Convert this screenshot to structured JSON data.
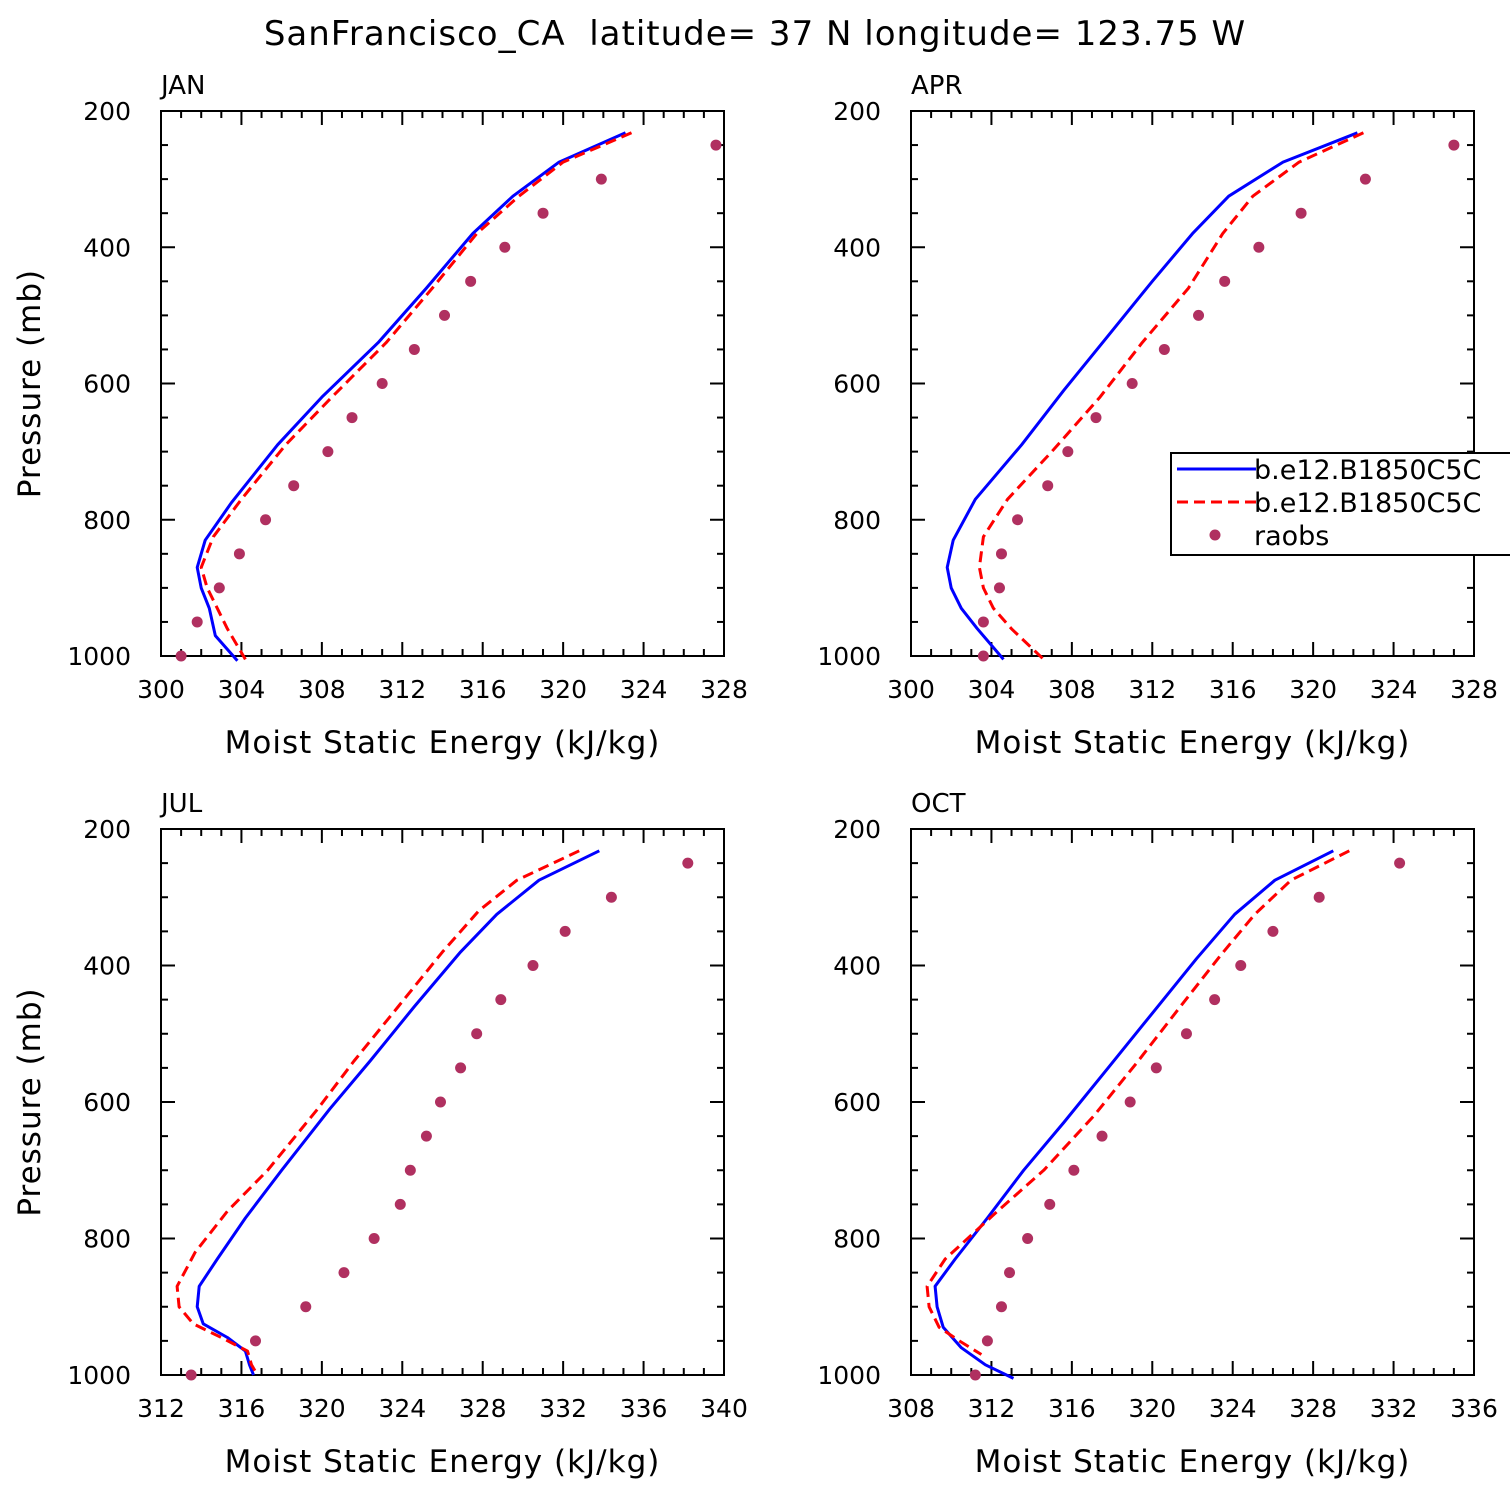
{
  "figure_title": "SanFrancisco_CA  latitude= 37 N longitude= 123.75 W",
  "legend": {
    "entries": [
      {
        "label": "b.e12.B1850C5C",
        "color": "#0000ff",
        "style": "solid"
      },
      {
        "label": "b.e12.B1850C5C",
        "color": "#ff0000",
        "style": "dashed"
      },
      {
        "label": "raobs",
        "color": "#b03060",
        "style": "dot"
      }
    ]
  },
  "chart_data": [
    {
      "type": "line",
      "title": "JAN",
      "xlabel": "Moist Static Energy (kJ/kg)",
      "ylabel": "Pressure (mb)",
      "xlim": [
        300,
        328
      ],
      "ylim": [
        1000,
        200
      ],
      "xticks": [
        "300",
        "304",
        "308",
        "312",
        "316",
        "320",
        "324",
        "328"
      ],
      "yticks": [
        "200",
        "400",
        "600",
        "800",
        "1000"
      ],
      "series": [
        {
          "name": "b.e12.B1850C5C",
          "color": "#0000ff",
          "style": "solid",
          "points": [
            [
              323.1,
              232
            ],
            [
              319.8,
              275
            ],
            [
              317.5,
              325
            ],
            [
              315.5,
              380
            ],
            [
              313.2,
              460
            ],
            [
              310.8,
              540
            ],
            [
              308.0,
              620
            ],
            [
              305.8,
              690
            ],
            [
              303.5,
              775
            ],
            [
              302.2,
              830
            ],
            [
              301.8,
              870
            ],
            [
              302.0,
              900
            ],
            [
              302.4,
              930
            ],
            [
              302.7,
              970
            ],
            [
              303.8,
              1007
            ]
          ]
        },
        {
          "name": "b.e12.B1850C5C",
          "color": "#ff0000",
          "style": "dashed",
          "points": [
            [
              323.4,
              232
            ],
            [
              320.0,
              275
            ],
            [
              317.8,
              325
            ],
            [
              315.7,
              380
            ],
            [
              313.5,
              460
            ],
            [
              311.2,
              540
            ],
            [
              308.5,
              620
            ],
            [
              306.2,
              690
            ],
            [
              304.0,
              770
            ],
            [
              302.6,
              825
            ],
            [
              302.0,
              870
            ],
            [
              302.3,
              900
            ],
            [
              302.8,
              930
            ],
            [
              303.3,
              960
            ],
            [
              304.2,
              1005
            ]
          ]
        },
        {
          "name": "raobs",
          "color": "#b03060",
          "style": "dot",
          "points": [
            [
              327.6,
              250
            ],
            [
              321.9,
              300
            ],
            [
              319.0,
              350
            ],
            [
              317.1,
              400
            ],
            [
              315.4,
              450
            ],
            [
              314.1,
              500
            ],
            [
              312.6,
              550
            ],
            [
              311.0,
              600
            ],
            [
              309.5,
              650
            ],
            [
              308.3,
              700
            ],
            [
              306.6,
              750
            ],
            [
              305.2,
              800
            ],
            [
              303.9,
              850
            ],
            [
              302.9,
              900
            ],
            [
              301.8,
              950
            ],
            [
              301.0,
              1000
            ]
          ]
        }
      ]
    },
    {
      "type": "line",
      "title": "APR",
      "xlabel": "Moist Static Energy (kJ/kg)",
      "ylabel": "",
      "xlim": [
        300,
        328
      ],
      "ylim": [
        1000,
        200
      ],
      "xticks": [
        "300",
        "304",
        "308",
        "312",
        "316",
        "320",
        "324",
        "328"
      ],
      "yticks": [
        "200",
        "400",
        "600",
        "800",
        "1000"
      ],
      "series": [
        {
          "name": "b.e12.B1850C5C",
          "color": "#0000ff",
          "style": "solid",
          "points": [
            [
              322.2,
              232
            ],
            [
              318.5,
              275
            ],
            [
              315.8,
              325
            ],
            [
              314.0,
              380
            ],
            [
              312.0,
              450
            ],
            [
              309.8,
              530
            ],
            [
              307.6,
              610
            ],
            [
              305.5,
              690
            ],
            [
              303.2,
              770
            ],
            [
              302.1,
              830
            ],
            [
              301.8,
              870
            ],
            [
              302.0,
              900
            ],
            [
              302.5,
              930
            ],
            [
              303.3,
              960
            ],
            [
              304.6,
              1005
            ]
          ]
        },
        {
          "name": "b.e12.B1850C5C",
          "color": "#ff0000",
          "style": "dashed",
          "points": [
            [
              322.5,
              232
            ],
            [
              319.3,
              275
            ],
            [
              317.0,
              325
            ],
            [
              315.5,
              380
            ],
            [
              313.8,
              460
            ],
            [
              311.5,
              540
            ],
            [
              309.4,
              620
            ],
            [
              307.0,
              700
            ],
            [
              304.8,
              770
            ],
            [
              303.6,
              825
            ],
            [
              303.4,
              870
            ],
            [
              303.6,
              900
            ],
            [
              304.1,
              930
            ],
            [
              305.0,
              960
            ],
            [
              306.6,
              1005
            ]
          ]
        },
        {
          "name": "raobs",
          "color": "#b03060",
          "style": "dot",
          "points": [
            [
              327.0,
              250
            ],
            [
              322.6,
              300
            ],
            [
              319.4,
              350
            ],
            [
              317.3,
              400
            ],
            [
              315.6,
              450
            ],
            [
              314.3,
              500
            ],
            [
              312.6,
              550
            ],
            [
              311.0,
              600
            ],
            [
              309.2,
              650
            ],
            [
              307.8,
              700
            ],
            [
              306.8,
              750
            ],
            [
              305.3,
              800
            ],
            [
              304.5,
              850
            ],
            [
              304.4,
              900
            ],
            [
              303.6,
              950
            ],
            [
              303.6,
              1000
            ]
          ]
        }
      ]
    },
    {
      "type": "line",
      "title": "JUL",
      "xlabel": "Moist Static Energy (kJ/kg)",
      "ylabel": "Pressure (mb)",
      "xlim": [
        312,
        340
      ],
      "ylim": [
        1000,
        200
      ],
      "xticks": [
        "312",
        "316",
        "320",
        "324",
        "328",
        "332",
        "336",
        "340"
      ],
      "yticks": [
        "200",
        "400",
        "600",
        "800",
        "1000"
      ],
      "series": [
        {
          "name": "b.e12.B1850C5C",
          "color": "#0000ff",
          "style": "solid",
          "points": [
            [
              333.8,
              232
            ],
            [
              330.8,
              275
            ],
            [
              328.7,
              325
            ],
            [
              326.9,
              380
            ],
            [
              324.6,
              460
            ],
            [
              322.4,
              540
            ],
            [
              320.4,
              610
            ],
            [
              318.0,
              700
            ],
            [
              316.2,
              770
            ],
            [
              314.8,
              830
            ],
            [
              313.9,
              870
            ],
            [
              313.8,
              900
            ],
            [
              314.1,
              925
            ],
            [
              315.3,
              945
            ],
            [
              316.2,
              965
            ],
            [
              316.4,
              985
            ],
            [
              316.6,
              1000
            ]
          ]
        },
        {
          "name": "b.e12.B1850C5C",
          "color": "#ff0000",
          "style": "dashed",
          "points": [
            [
              332.8,
              232
            ],
            [
              329.7,
              275
            ],
            [
              327.8,
              320
            ],
            [
              326.0,
              380
            ],
            [
              323.8,
              460
            ],
            [
              321.6,
              540
            ],
            [
              319.8,
              610
            ],
            [
              317.3,
              700
            ],
            [
              315.3,
              760
            ],
            [
              313.7,
              820
            ],
            [
              312.8,
              870
            ],
            [
              312.9,
              900
            ],
            [
              313.6,
              925
            ],
            [
              315.0,
              945
            ],
            [
              316.3,
              965
            ],
            [
              316.5,
              985
            ],
            [
              316.8,
              1000
            ]
          ]
        },
        {
          "name": "raobs",
          "color": "#b03060",
          "style": "dot",
          "points": [
            [
              338.2,
              250
            ],
            [
              334.4,
              300
            ],
            [
              332.1,
              350
            ],
            [
              330.5,
              400
            ],
            [
              328.9,
              450
            ],
            [
              327.7,
              500
            ],
            [
              326.9,
              550
            ],
            [
              325.9,
              600
            ],
            [
              325.2,
              650
            ],
            [
              324.4,
              700
            ],
            [
              323.9,
              750
            ],
            [
              322.6,
              800
            ],
            [
              321.1,
              850
            ],
            [
              319.2,
              900
            ],
            [
              316.7,
              950
            ],
            [
              313.5,
              1000
            ]
          ]
        }
      ]
    },
    {
      "type": "line",
      "title": "OCT",
      "xlabel": "Moist Static Energy (kJ/kg)",
      "ylabel": "",
      "xlim": [
        308,
        336
      ],
      "ylim": [
        1000,
        200
      ],
      "xticks": [
        "308",
        "312",
        "316",
        "320",
        "324",
        "328",
        "332",
        "336"
      ],
      "yticks": [
        "200",
        "400",
        "600",
        "800",
        "1000"
      ],
      "series": [
        {
          "name": "b.e12.B1850C5C",
          "color": "#0000ff",
          "style": "solid",
          "points": [
            [
              329.0,
              232
            ],
            [
              326.1,
              275
            ],
            [
              324.1,
              325
            ],
            [
              322.2,
              390
            ],
            [
              320.0,
              470
            ],
            [
              317.8,
              550
            ],
            [
              315.6,
              630
            ],
            [
              313.6,
              700
            ],
            [
              311.8,
              770
            ],
            [
              310.2,
              830
            ],
            [
              309.2,
              870
            ],
            [
              309.3,
              900
            ],
            [
              309.6,
              930
            ],
            [
              310.5,
              960
            ],
            [
              311.7,
              985
            ],
            [
              313.1,
              1005
            ]
          ]
        },
        {
          "name": "b.e12.B1850C5C",
          "color": "#ff0000",
          "style": "dashed",
          "points": [
            [
              329.8,
              232
            ],
            [
              326.9,
              275
            ],
            [
              325.1,
              325
            ],
            [
              323.4,
              385
            ],
            [
              321.4,
              460
            ],
            [
              319.3,
              540
            ],
            [
              317.1,
              620
            ],
            [
              314.6,
              700
            ],
            [
              312.3,
              760
            ],
            [
              309.7,
              830
            ],
            [
              308.8,
              870
            ],
            [
              308.9,
              900
            ],
            [
              309.4,
              930
            ],
            [
              310.4,
              950
            ],
            [
              311.5,
              970
            ]
          ]
        },
        {
          "name": "raobs",
          "color": "#b03060",
          "style": "dot",
          "points": [
            [
              332.3,
              250
            ],
            [
              328.3,
              300
            ],
            [
              326.0,
              350
            ],
            [
              324.4,
              400
            ],
            [
              323.1,
              450
            ],
            [
              321.7,
              500
            ],
            [
              320.2,
              550
            ],
            [
              318.9,
              600
            ],
            [
              317.5,
              650
            ],
            [
              316.1,
              700
            ],
            [
              314.9,
              750
            ],
            [
              313.8,
              800
            ],
            [
              312.9,
              850
            ],
            [
              312.5,
              900
            ],
            [
              311.8,
              950
            ],
            [
              311.2,
              1000
            ]
          ]
        }
      ]
    }
  ]
}
